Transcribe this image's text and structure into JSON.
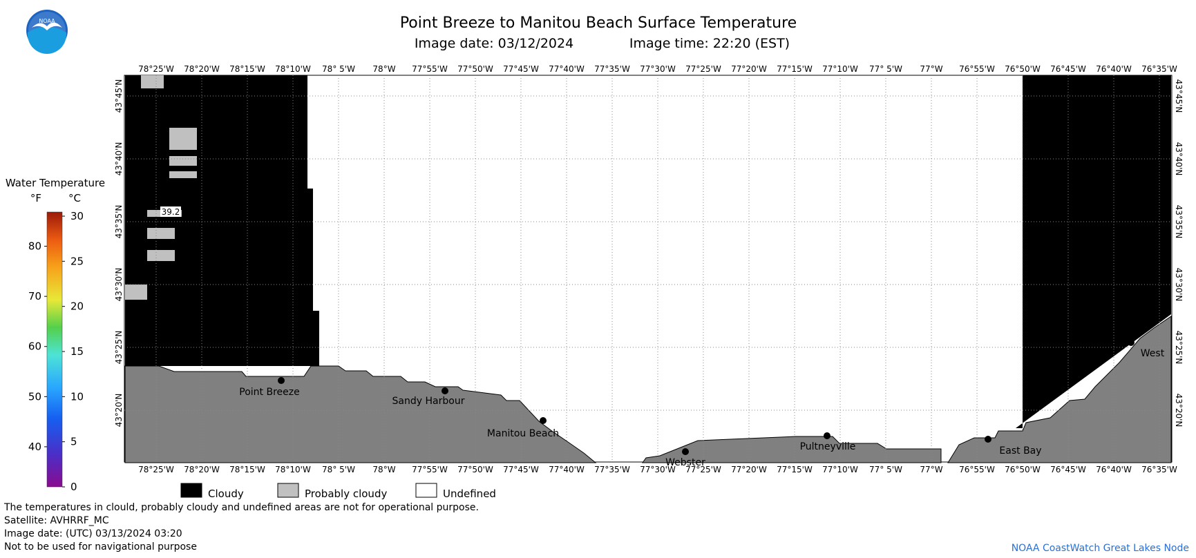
{
  "header": {
    "title": "Point Breeze to Manitou Beach Surface Temperature",
    "image_date_label": "Image date: 03/12/2024",
    "image_time_label": "Image time: 22:20 (EST)",
    "logo_text": "NOAA"
  },
  "scale": {
    "title": "Water Temperature",
    "unit_f": "°F",
    "unit_c": "°C",
    "f_ticks": [
      "80",
      "70",
      "60",
      "50",
      "40"
    ],
    "c_ticks": [
      "30",
      "25",
      "20",
      "15",
      "10",
      "5",
      "0"
    ]
  },
  "map": {
    "lon_labels": [
      "78°25'W",
      "78°20'W",
      "78°15'W",
      "78°10'W",
      "78° 5'W",
      "78°W",
      "77°55'W",
      "77°50'W",
      "77°45'W",
      "77°40'W",
      "77°35'W",
      "77°30'W",
      "77°25'W",
      "77°20'W",
      "77°15'W",
      "77°10'W",
      "77° 5'W",
      "77°W",
      "76°55'W",
      "76°50'W",
      "76°45'W",
      "76°40'W",
      "76°35'W"
    ],
    "lat_labels": [
      "43°45'N",
      "43°40'N",
      "43°35'N",
      "43°30'N",
      "43°25'N",
      "43°20'N"
    ],
    "places": [
      {
        "name": "Point Breeze"
      },
      {
        "name": "Sandy Harbour"
      },
      {
        "name": "Manitou Beach"
      },
      {
        "name": "Webster"
      },
      {
        "name": "Pultneyville"
      },
      {
        "name": "East Bay"
      },
      {
        "name": "West"
      }
    ],
    "temperature_label": "39.2"
  },
  "legend": {
    "cloudy": "Cloudy",
    "probably_cloudy": "Probably cloudy",
    "undefined": "Undefined"
  },
  "footer": {
    "line1": "The temperatures in clould, probably cloudy and undefined areas are not for operational purpose.",
    "line2": "Satellite: AVHRRF_MC",
    "line3": "Image date: (UTC) 03/13/2024  03:20",
    "line4": "Not to be used for navigational purpose",
    "credit": "NOAA CoastWatch Great Lakes Node"
  },
  "colors": {
    "land": "#808080",
    "probably_cloudy": "#c0c0c0",
    "cloudy": "#000000",
    "undefined": "#ffffff"
  }
}
